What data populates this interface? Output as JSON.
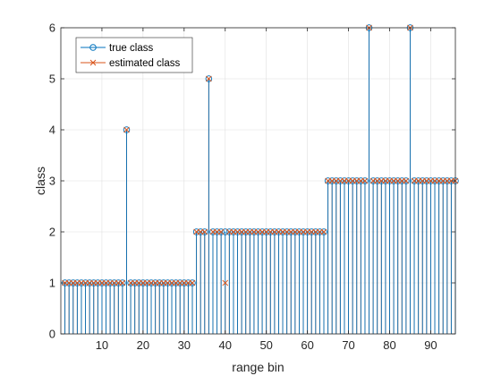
{
  "chart_data": {
    "type": "stem",
    "xlabel": "range bin",
    "ylabel": "class",
    "xlim": [
      0,
      96
    ],
    "ylim": [
      0,
      6
    ],
    "xticks": [
      10,
      20,
      30,
      40,
      50,
      60,
      70,
      80,
      90
    ],
    "yticks": [
      0,
      1,
      2,
      3,
      4,
      5,
      6
    ],
    "grid": true,
    "legend_position": "top-left",
    "x": [
      1,
      2,
      3,
      4,
      5,
      6,
      7,
      8,
      9,
      10,
      11,
      12,
      13,
      14,
      15,
      16,
      17,
      18,
      19,
      20,
      21,
      22,
      23,
      24,
      25,
      26,
      27,
      28,
      29,
      30,
      31,
      32,
      33,
      34,
      35,
      36,
      37,
      38,
      39,
      40,
      41,
      42,
      43,
      44,
      45,
      46,
      47,
      48,
      49,
      50,
      51,
      52,
      53,
      54,
      55,
      56,
      57,
      58,
      59,
      60,
      61,
      62,
      63,
      64,
      65,
      66,
      67,
      68,
      69,
      70,
      71,
      72,
      73,
      74,
      75,
      76,
      77,
      78,
      79,
      80,
      81,
      82,
      83,
      84,
      85,
      86,
      87,
      88,
      89,
      90,
      91,
      92,
      93,
      94,
      95,
      96
    ],
    "series": [
      {
        "name": "true class",
        "color": "#0072BD",
        "marker": "circle",
        "values": [
          1,
          1,
          1,
          1,
          1,
          1,
          1,
          1,
          1,
          1,
          1,
          1,
          1,
          1,
          1,
          4,
          1,
          1,
          1,
          1,
          1,
          1,
          1,
          1,
          1,
          1,
          1,
          1,
          1,
          1,
          1,
          1,
          2,
          2,
          2,
          5,
          2,
          2,
          2,
          2,
          2,
          2,
          2,
          2,
          2,
          2,
          2,
          2,
          2,
          2,
          2,
          2,
          2,
          2,
          2,
          2,
          2,
          2,
          2,
          2,
          2,
          2,
          2,
          2,
          3,
          3,
          3,
          3,
          3,
          3,
          3,
          3,
          3,
          3,
          6,
          3,
          3,
          3,
          3,
          3,
          3,
          3,
          3,
          3,
          6,
          3,
          3,
          3,
          3,
          3,
          3,
          3,
          3,
          3,
          3,
          3
        ]
      },
      {
        "name": "estimated class",
        "color": "#D95319",
        "marker": "x",
        "values": [
          1,
          1,
          1,
          1,
          1,
          1,
          1,
          1,
          1,
          1,
          1,
          1,
          1,
          1,
          1,
          4,
          1,
          1,
          1,
          1,
          1,
          1,
          1,
          1,
          1,
          1,
          1,
          1,
          1,
          1,
          1,
          1,
          2,
          2,
          2,
          5,
          2,
          2,
          2,
          1,
          2,
          2,
          2,
          2,
          2,
          2,
          2,
          2,
          2,
          2,
          2,
          2,
          2,
          2,
          2,
          2,
          2,
          2,
          2,
          2,
          2,
          2,
          2,
          2,
          3,
          3,
          3,
          3,
          3,
          3,
          3,
          3,
          3,
          3,
          6,
          3,
          3,
          3,
          3,
          3,
          3,
          3,
          3,
          3,
          6,
          3,
          3,
          3,
          3,
          3,
          3,
          3,
          3,
          3,
          3,
          3
        ]
      }
    ]
  }
}
